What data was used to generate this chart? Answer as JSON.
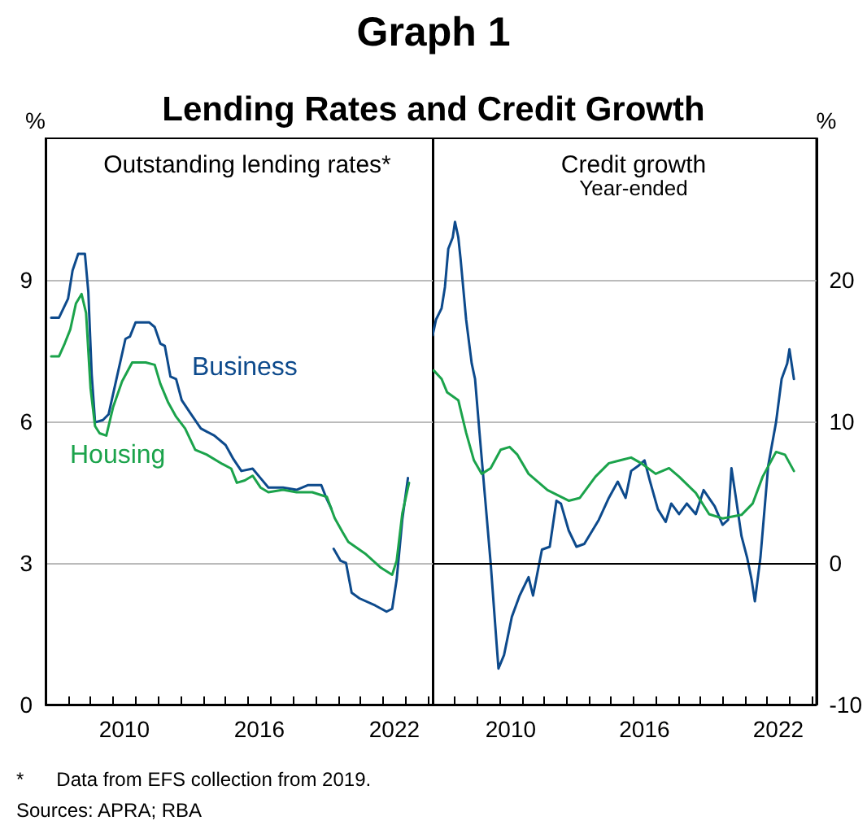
{
  "chart_data": [
    {
      "type": "line",
      "title": "Outstanding lending rates*",
      "ylabel": "%",
      "annotations": [
        "Graph 1",
        "Lending Rates and Credit Growth"
      ],
      "grid": "y",
      "xlim": [
        2007,
        2024.2
      ],
      "xticks": [
        {
          "value": 2008,
          "label": null
        },
        {
          "value": 2009,
          "label": null
        },
        {
          "value": 2010,
          "label": null
        },
        {
          "value": 2010.5,
          "label": "2010"
        },
        {
          "value": 2011,
          "label": null
        },
        {
          "value": 2012,
          "label": null
        },
        {
          "value": 2013,
          "label": null
        },
        {
          "value": 2014,
          "label": null
        },
        {
          "value": 2015,
          "label": null
        },
        {
          "value": 2016,
          "label": null
        },
        {
          "value": 2016.5,
          "label": "2016"
        },
        {
          "value": 2017,
          "label": null
        },
        {
          "value": 2018,
          "label": null
        },
        {
          "value": 2019,
          "label": null
        },
        {
          "value": 2020,
          "label": null
        },
        {
          "value": 2021,
          "label": null
        },
        {
          "value": 2022,
          "label": null
        },
        {
          "value": 2022.5,
          "label": "2022"
        },
        {
          "value": 2023,
          "label": null
        },
        {
          "value": 2024,
          "label": null
        }
      ],
      "ylim": [
        0,
        12
      ],
      "yticks": [
        0,
        3,
        6,
        9
      ],
      "series": [
        {
          "name": "Business",
          "color": "#0d4a8c",
          "x": [
            2007.25,
            2007.6,
            2008.0,
            2008.2,
            2008.45,
            2008.75,
            2008.9,
            2009.05,
            2009.2,
            2009.55,
            2009.8,
            2010.15,
            2010.55,
            2010.75,
            2011.0,
            2011.6,
            2011.85,
            2012.1,
            2012.3,
            2012.55,
            2012.8,
            2013.05,
            2013.4,
            2013.9,
            2014.5,
            2015.0,
            2015.35,
            2015.7,
            2016.2,
            2016.55,
            2016.9,
            2017.55,
            2018.15,
            2018.65,
            2019.25,
            2019.5,
            2019.7,
            2019.75,
            2019.8,
            2020.1,
            2020.35,
            2020.6,
            2020.95,
            2021.65,
            2022.15,
            2022.4,
            2022.6,
            2022.85,
            2023.1
          ],
          "values": [
            8.2,
            8.2,
            8.6,
            9.2,
            9.55,
            9.55,
            8.75,
            7.0,
            5.98,
            6.03,
            6.15,
            6.9,
            7.75,
            7.8,
            8.1,
            8.1,
            8.0,
            7.65,
            7.6,
            6.95,
            6.9,
            6.45,
            6.2,
            5.85,
            5.7,
            5.5,
            5.2,
            4.95,
            5.0,
            4.8,
            4.6,
            4.6,
            4.55,
            4.65,
            4.65,
            4.35,
            4.15,
            null,
            3.3,
            3.05,
            3.0,
            2.37,
            2.25,
            2.1,
            1.97,
            2.03,
            2.65,
            3.92,
            4.8
          ]
        },
        {
          "name": "Housing",
          "color": "#1ba34b",
          "x": [
            2007.25,
            2007.6,
            2007.85,
            2008.1,
            2008.35,
            2008.6,
            2008.8,
            2009.0,
            2009.2,
            2009.4,
            2009.7,
            2010.0,
            2010.4,
            2010.85,
            2011.45,
            2011.85,
            2012.1,
            2012.45,
            2012.8,
            2013.2,
            2013.65,
            2014.15,
            2014.85,
            2015.25,
            2015.5,
            2015.85,
            2016.2,
            2016.55,
            2016.9,
            2017.55,
            2018.15,
            2018.85,
            2019.5,
            2019.85,
            2020.2,
            2020.45,
            2021.2,
            2021.9,
            2022.4,
            2022.6,
            2022.85,
            2023.15
          ],
          "values": [
            7.38,
            7.38,
            7.65,
            7.95,
            8.5,
            8.7,
            8.3,
            6.7,
            5.9,
            5.75,
            5.7,
            6.3,
            6.85,
            7.25,
            7.25,
            7.2,
            6.8,
            6.4,
            6.1,
            5.85,
            5.4,
            5.3,
            5.1,
            5.0,
            4.7,
            4.75,
            4.85,
            4.6,
            4.5,
            4.55,
            4.5,
            4.5,
            4.4,
            3.95,
            3.65,
            3.45,
            3.2,
            2.9,
            2.75,
            3.05,
            4.05,
            4.7
          ]
        }
      ]
    },
    {
      "type": "line",
      "title": "Credit growth",
      "subtitle": "Year-ended",
      "y2label": "%",
      "annotations": [
        "*      Data from EFS collection from 2019.",
        "Sources: APRA; RBA"
      ],
      "grid": "y",
      "xlim": [
        2007,
        2024.2
      ],
      "xticks": [
        {
          "value": 2008,
          "label": null
        },
        {
          "value": 2009,
          "label": null
        },
        {
          "value": 2010,
          "label": null
        },
        {
          "value": 2010.5,
          "label": "2010"
        },
        {
          "value": 2011,
          "label": null
        },
        {
          "value": 2012,
          "label": null
        },
        {
          "value": 2013,
          "label": null
        },
        {
          "value": 2014,
          "label": null
        },
        {
          "value": 2015,
          "label": null
        },
        {
          "value": 2016,
          "label": null
        },
        {
          "value": 2016.5,
          "label": "2016"
        },
        {
          "value": 2017,
          "label": null
        },
        {
          "value": 2018,
          "label": null
        },
        {
          "value": 2019,
          "label": null
        },
        {
          "value": 2020,
          "label": null
        },
        {
          "value": 2021,
          "label": null
        },
        {
          "value": 2022,
          "label": null
        },
        {
          "value": 2022.5,
          "label": "2022"
        },
        {
          "value": 2023,
          "label": null
        },
        {
          "value": 2024,
          "label": null
        }
      ],
      "y2lim": [
        -10,
        30
      ],
      "y2ticks": [
        -10,
        0,
        10,
        20
      ],
      "ref_lines": [
        {
          "axis": "y2",
          "value": 0,
          "label": null,
          "color": "#000000"
        }
      ],
      "series": [
        {
          "axis": "y2",
          "color": "#0d4a8c",
          "x": [
            2007.0,
            2007.15,
            2007.4,
            2007.55,
            2007.7,
            2007.9,
            2008.0,
            2008.15,
            2008.25,
            2008.5,
            2008.75,
            2008.9,
            2009.1,
            2009.35,
            2009.6,
            2009.85,
            2009.95,
            2010.2,
            2010.55,
            2010.9,
            2011.3,
            2011.5,
            2011.9,
            2012.25,
            2012.55,
            2012.75,
            2013.1,
            2013.45,
            2013.8,
            2014.45,
            2014.9,
            2015.3,
            2015.65,
            2015.9,
            2016.25,
            2016.5,
            2016.75,
            2017.1,
            2017.45,
            2017.7,
            2018.05,
            2018.4,
            2018.8,
            2019.15,
            2019.65,
            2020.0,
            2020.25,
            2020.4,
            2020.6,
            2020.85,
            2021.1,
            2021.3,
            2021.45,
            2021.7,
            2022.05,
            2022.4,
            2022.65,
            2022.9,
            2023.0,
            2023.2
          ],
          "values": [
            16.1,
            17.2,
            18.0,
            19.5,
            22.2,
            23.0,
            24.1,
            23.0,
            21.5,
            17.2,
            14.1,
            13.0,
            9.2,
            4.6,
            0,
            -5.35,
            -7.45,
            -6.5,
            -3.8,
            -2.3,
            -1.0,
            -2.3,
            0.95,
            1.15,
            4.4,
            4.2,
            2.3,
            1.15,
            1.35,
            3.05,
            4.6,
            5.75,
            4.6,
            6.5,
            6.9,
            7.25,
            5.75,
            3.8,
            2.9,
            4.2,
            3.45,
            4.2,
            3.45,
            5.15,
            4.0,
            2.7,
            3.05,
            6.7,
            4.6,
            1.9,
            0.4,
            -1.15,
            -2.7,
            0.4,
            6.9,
            9.95,
            13.0,
            14.1,
            15.1,
            13.0
          ]
        },
        {
          "axis": "y2",
          "color": "#1ba34b",
          "x": [
            2007.05,
            2007.4,
            2007.65,
            2008.15,
            2008.5,
            2008.85,
            2009.2,
            2009.6,
            2010.05,
            2010.45,
            2010.8,
            2011.3,
            2012.15,
            2013.1,
            2013.6,
            2014.3,
            2014.9,
            2015.9,
            2016.35,
            2017.0,
            2017.6,
            2018.05,
            2018.8,
            2019.4,
            2020.0,
            2020.85,
            2021.35,
            2021.8,
            2022.4,
            2022.8,
            2023.2
          ],
          "values": [
            13.6,
            13.0,
            12.05,
            11.5,
            9.2,
            7.25,
            6.3,
            6.7,
            8.0,
            8.2,
            7.65,
            6.3,
            5.15,
            4.4,
            4.6,
            6.1,
            7.05,
            7.45,
            7.05,
            6.3,
            6.7,
            6.1,
            4.95,
            3.45,
            3.15,
            3.4,
            4.2,
            6.1,
            7.85,
            7.65,
            6.5
          ]
        }
      ]
    }
  ]
}
